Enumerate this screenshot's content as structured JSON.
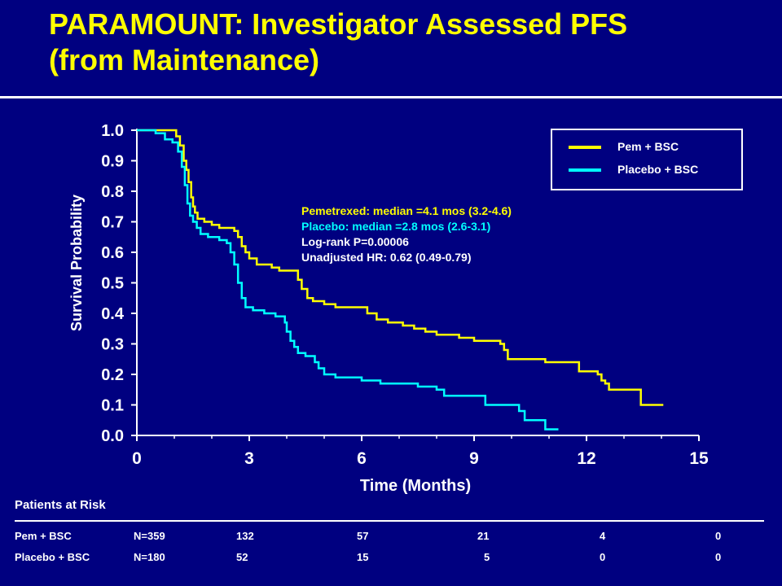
{
  "title_line1": "PARAMOUNT:  Investigator Assessed PFS",
  "title_line2": "(from Maintenance)",
  "chart_data": {
    "type": "line",
    "step": true,
    "xlabel": "Time (Months)",
    "ylabel": "Survival Probability",
    "xlim": [
      0,
      15
    ],
    "ylim": [
      0.0,
      1.0
    ],
    "xticks": [
      "0",
      "3",
      "6",
      "9",
      "12",
      "15"
    ],
    "yticks": [
      "0.0",
      "0.1",
      "0.2",
      "0.3",
      "0.4",
      "0.5",
      "0.6",
      "0.7",
      "0.8",
      "0.9",
      "1.0"
    ],
    "legend_position": "top-right",
    "series": [
      {
        "name": "Pem + BSC",
        "color": "#ffff00",
        "points": [
          [
            0,
            1.0
          ],
          [
            0.9,
            1.0
          ],
          [
            1.05,
            0.98
          ],
          [
            1.15,
            0.95
          ],
          [
            1.25,
            0.9
          ],
          [
            1.32,
            0.87
          ],
          [
            1.38,
            0.83
          ],
          [
            1.45,
            0.78
          ],
          [
            1.5,
            0.75
          ],
          [
            1.55,
            0.73
          ],
          [
            1.62,
            0.71
          ],
          [
            1.8,
            0.7
          ],
          [
            2.0,
            0.69
          ],
          [
            2.2,
            0.68
          ],
          [
            2.6,
            0.67
          ],
          [
            2.7,
            0.65
          ],
          [
            2.8,
            0.62
          ],
          [
            2.9,
            0.6
          ],
          [
            3.0,
            0.58
          ],
          [
            3.2,
            0.56
          ],
          [
            3.6,
            0.55
          ],
          [
            3.8,
            0.54
          ],
          [
            4.2,
            0.54
          ],
          [
            4.3,
            0.51
          ],
          [
            4.4,
            0.48
          ],
          [
            4.55,
            0.45
          ],
          [
            4.7,
            0.44
          ],
          [
            5.0,
            0.43
          ],
          [
            5.3,
            0.42
          ],
          [
            6.0,
            0.42
          ],
          [
            6.15,
            0.4
          ],
          [
            6.4,
            0.38
          ],
          [
            6.7,
            0.37
          ],
          [
            7.1,
            0.36
          ],
          [
            7.4,
            0.35
          ],
          [
            7.7,
            0.34
          ],
          [
            8.0,
            0.33
          ],
          [
            8.6,
            0.32
          ],
          [
            9.0,
            0.31
          ],
          [
            9.7,
            0.3
          ],
          [
            9.8,
            0.28
          ],
          [
            9.9,
            0.25
          ],
          [
            10.8,
            0.25
          ],
          [
            10.9,
            0.24
          ],
          [
            11.7,
            0.24
          ],
          [
            11.8,
            0.21
          ],
          [
            12.3,
            0.2
          ],
          [
            12.4,
            0.18
          ],
          [
            12.5,
            0.17
          ],
          [
            12.6,
            0.15
          ],
          [
            13.4,
            0.15
          ],
          [
            13.45,
            0.1
          ],
          [
            14.05,
            0.1
          ]
        ]
      },
      {
        "name": "Placebo + BSC",
        "color": "#00ffff",
        "points": [
          [
            0,
            1.0
          ],
          [
            0.5,
            0.99
          ],
          [
            0.75,
            0.97
          ],
          [
            0.95,
            0.96
          ],
          [
            1.1,
            0.93
          ],
          [
            1.2,
            0.88
          ],
          [
            1.28,
            0.82
          ],
          [
            1.35,
            0.76
          ],
          [
            1.42,
            0.72
          ],
          [
            1.5,
            0.7
          ],
          [
            1.6,
            0.68
          ],
          [
            1.7,
            0.66
          ],
          [
            1.9,
            0.65
          ],
          [
            2.2,
            0.64
          ],
          [
            2.4,
            0.63
          ],
          [
            2.5,
            0.6
          ],
          [
            2.6,
            0.56
          ],
          [
            2.7,
            0.5
          ],
          [
            2.8,
            0.45
          ],
          [
            2.9,
            0.42
          ],
          [
            3.1,
            0.41
          ],
          [
            3.4,
            0.4
          ],
          [
            3.7,
            0.39
          ],
          [
            3.95,
            0.37
          ],
          [
            4.0,
            0.34
          ],
          [
            4.1,
            0.31
          ],
          [
            4.2,
            0.29
          ],
          [
            4.3,
            0.27
          ],
          [
            4.5,
            0.26
          ],
          [
            4.75,
            0.24
          ],
          [
            4.85,
            0.22
          ],
          [
            5.0,
            0.2
          ],
          [
            5.3,
            0.19
          ],
          [
            6.0,
            0.18
          ],
          [
            6.5,
            0.17
          ],
          [
            7.5,
            0.16
          ],
          [
            8.0,
            0.15
          ],
          [
            8.2,
            0.13
          ],
          [
            9.2,
            0.13
          ],
          [
            9.3,
            0.1
          ],
          [
            10.2,
            0.08
          ],
          [
            10.35,
            0.05
          ],
          [
            10.85,
            0.05
          ],
          [
            10.9,
            0.02
          ],
          [
            11.25,
            0.02
          ]
        ]
      }
    ],
    "annotations": [
      {
        "text": "Pemetrexed: median =4.1 mos (3.2-4.6)",
        "color": "#ffff00"
      },
      {
        "text": "Placebo: median =2.8 mos (2.6-3.1)",
        "color": "#00ffff"
      },
      {
        "text": "Log-rank P=0.00006",
        "color": "#ffffff"
      },
      {
        "text": "Unadjusted HR: 0.62 (0.49-0.79)",
        "color": "#ffffff"
      }
    ]
  },
  "risk_table": {
    "title": "Patients at Risk",
    "rows": [
      {
        "label": "Pem + BSC",
        "values": [
          "N=359",
          "132",
          "57",
          "21",
          "4",
          "0"
        ]
      },
      {
        "label": "Placebo + BSC",
        "values": [
          "N=180",
          "52",
          "15",
          "5",
          "0",
          "0"
        ]
      }
    ]
  }
}
